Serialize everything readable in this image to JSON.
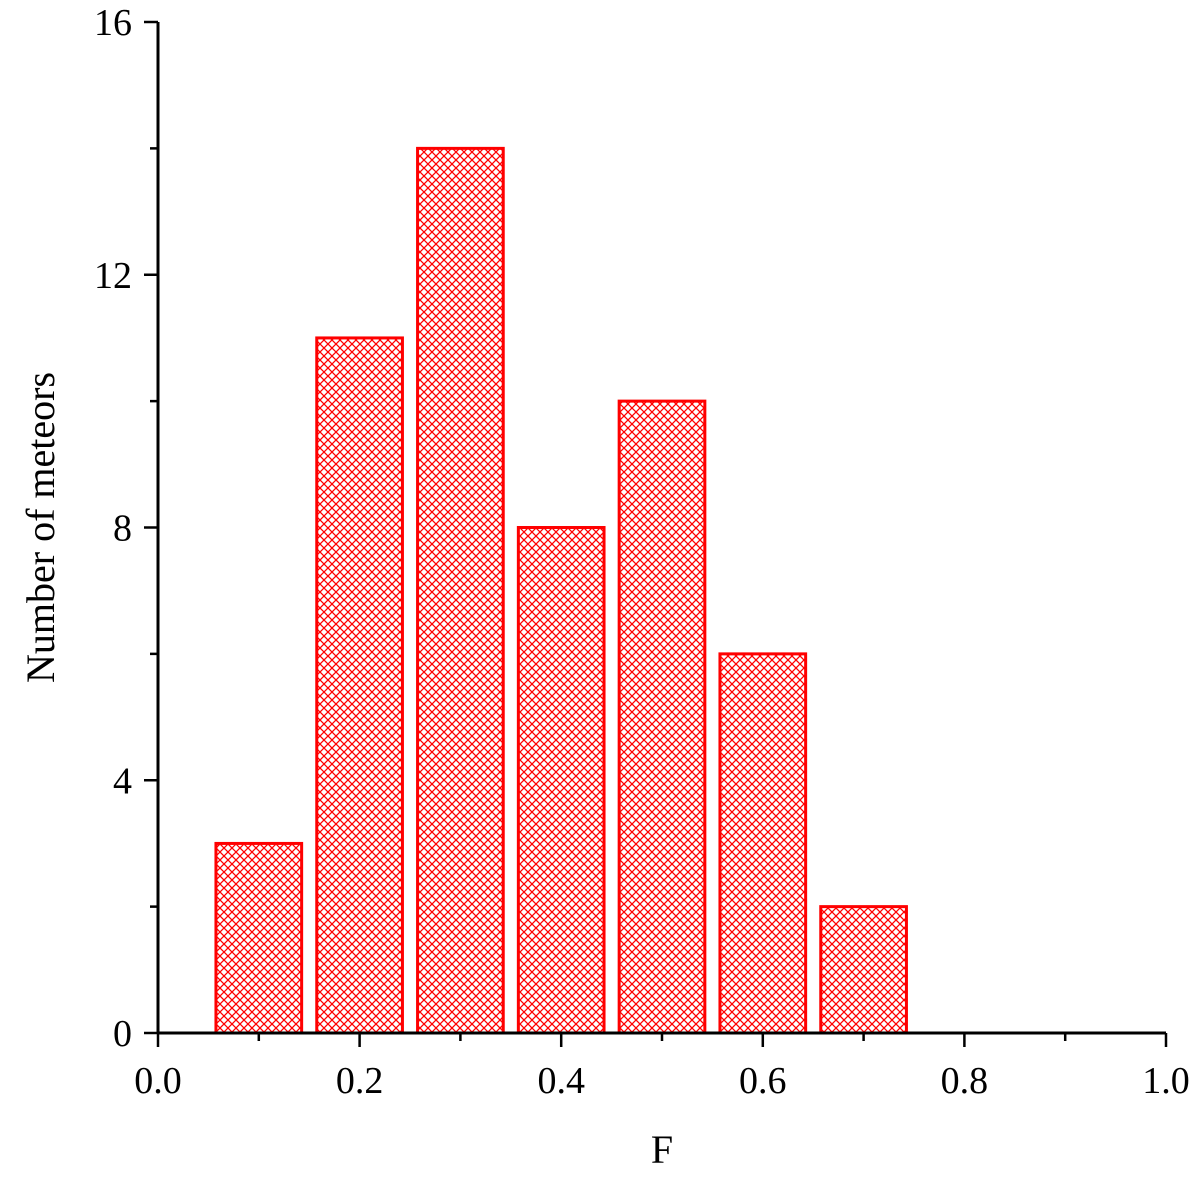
{
  "chart_data": {
    "type": "bar",
    "title": "",
    "xlabel": "F",
    "ylabel": "Number of meteors",
    "x": [
      0.1,
      0.2,
      0.3,
      0.4,
      0.5,
      0.6,
      0.7
    ],
    "values": [
      3,
      11,
      14,
      8,
      10,
      6,
      2
    ],
    "bin_width": 0.085,
    "xlim": [
      0.0,
      1.0
    ],
    "ylim": [
      0,
      16
    ],
    "x_ticks": [
      "0.0",
      "0.2",
      "0.4",
      "0.6",
      "0.8",
      "1.0"
    ],
    "y_ticks": [
      "0",
      "4",
      "8",
      "12",
      "16"
    ],
    "grid": false,
    "legend": "none",
    "bar_color": "#ff0000",
    "bar_fill": "cross-hatch"
  }
}
